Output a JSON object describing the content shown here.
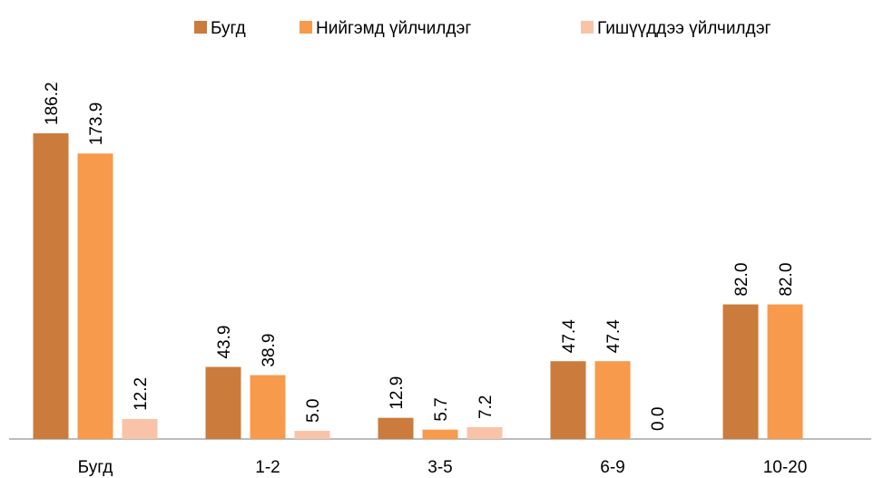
{
  "chart_data": {
    "type": "bar",
    "categories": [
      "Бугд",
      "1-2",
      "3-5",
      "6-9",
      "10-20"
    ],
    "series": [
      {
        "name": "Бугд",
        "color": "#cb7b3b",
        "values": [
          186.2,
          43.9,
          12.9,
          47.4,
          82
        ],
        "value_labels": [
          "186.2",
          "43.9",
          "12.9",
          "47.4",
          "82.0"
        ]
      },
      {
        "name": "Нийгэмд үйлчилдэг",
        "color": "#f79a4b",
        "values": [
          173.9,
          38.9,
          5.7,
          47.4,
          82
        ],
        "value_labels": [
          "173.9",
          "38.9",
          "5.7",
          "47.4",
          "82.0"
        ]
      },
      {
        "name": "Гишүүддээ үйлчилдэг",
        "color": "#f9c3a8",
        "values": [
          12.2,
          5,
          7.2,
          0,
          null
        ],
        "value_labels": [
          "12.2",
          "5.0",
          "7.2",
          "0.0",
          null
        ]
      }
    ],
    "legend": "top"
  }
}
